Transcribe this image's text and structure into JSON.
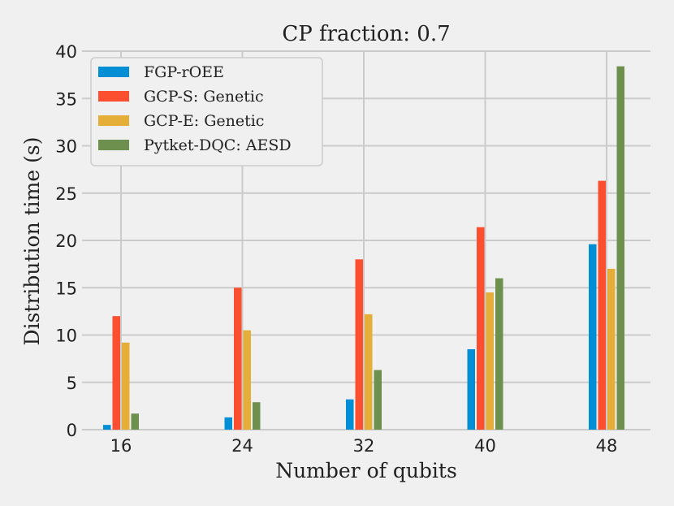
{
  "chart_data": {
    "type": "bar",
    "title": "CP fraction: 0.7",
    "xlabel": "Number of qubits",
    "ylabel": "Distribution time (s)",
    "categories": [
      "16",
      "24",
      "32",
      "40",
      "48"
    ],
    "ylim": [
      0,
      40
    ],
    "yticks": [
      0,
      5,
      10,
      15,
      20,
      25,
      30,
      35,
      40
    ],
    "grid": true,
    "legend_position": "top-left",
    "series": [
      {
        "name": "FGP-rOEE",
        "color": "#008fd5",
        "values": [
          0.5,
          1.3,
          3.2,
          8.5,
          19.6
        ]
      },
      {
        "name": "GCP-S: Genetic",
        "color": "#fc4f30",
        "values": [
          12.0,
          15.0,
          18.0,
          21.4,
          26.3
        ]
      },
      {
        "name": "GCP-E: Genetic",
        "color": "#e5ae38",
        "values": [
          9.2,
          10.5,
          12.2,
          14.5,
          17.0
        ]
      },
      {
        "name": "Pytket-DQC: AESD",
        "color": "#6d904f",
        "values": [
          1.7,
          2.9,
          6.3,
          16.0,
          38.4
        ]
      }
    ]
  }
}
